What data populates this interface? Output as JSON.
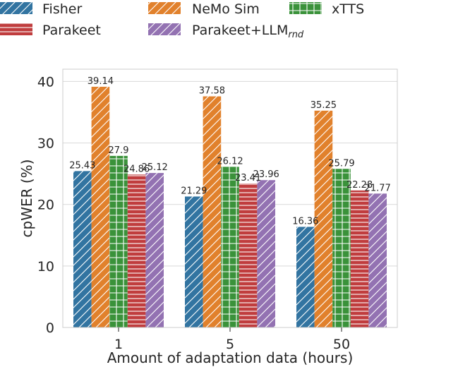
{
  "chart_data": {
    "type": "bar",
    "title": "",
    "xlabel": "Amount of adaptation data (hours)",
    "ylabel": "cpWER (%)",
    "ylim": [
      0,
      42
    ],
    "yticks": [
      0,
      10,
      20,
      30,
      40
    ],
    "grid": "horizontal",
    "legend_placement": "top, above plot, 3 columns",
    "categories": [
      "1",
      "5",
      "50"
    ],
    "series": [
      {
        "name": "Fisher",
        "values": [
          25.43,
          21.29,
          16.36
        ],
        "color": "#3274a1",
        "hatch": "diagonal"
      },
      {
        "name": "NeMo Sim",
        "values": [
          39.14,
          37.58,
          35.25
        ],
        "color": "#e1812c",
        "hatch": "diagonal"
      },
      {
        "name": "xTTS",
        "values": [
          27.9,
          26.12,
          25.79
        ],
        "color": "#3a923a",
        "hatch": "grid"
      },
      {
        "name": "Parakeet",
        "values": [
          24.86,
          23.41,
          22.28
        ],
        "color": "#c03d3e",
        "hatch": "horizontal"
      },
      {
        "name": "Parakeet+LLM",
        "name_subscript": "rnd",
        "values": [
          25.12,
          23.96,
          21.77
        ],
        "color": "#9372b2",
        "hatch": "diagonal"
      }
    ],
    "value_labels": [
      [
        "25.43",
        "21.29",
        "16.36"
      ],
      [
        "39.14",
        "37.58",
        "35.25"
      ],
      [
        "27.9",
        "26.12",
        "25.79"
      ],
      [
        "24.86",
        "23.41",
        "22.28"
      ],
      [
        "25.12",
        "23.96",
        "21.77"
      ]
    ]
  }
}
